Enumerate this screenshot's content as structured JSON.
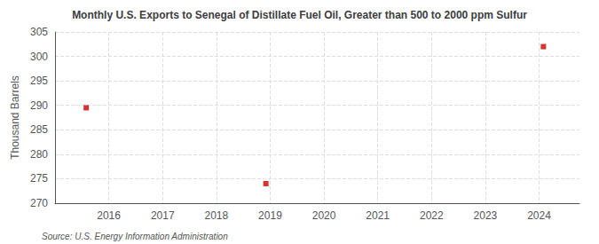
{
  "chart_data": {
    "type": "scatter",
    "title": "Monthly U.S. Exports to Senegal of Distillate Fuel Oil, Greater than 500 to 2000 ppm Sulfur",
    "ylabel": "Thousand Barrels",
    "source": "Source: U.S. Energy Information Administration",
    "x": [
      2015.58,
      2018.92,
      2024.08
    ],
    "values": [
      289.5,
      274.0,
      302.0
    ],
    "color": "#cc0000",
    "marker": "square",
    "xlim": [
      2015.0,
      2024.75
    ],
    "xticks": [
      2016,
      2017,
      2018,
      2019,
      2020,
      2021,
      2022,
      2023,
      2024
    ],
    "ylim": [
      270,
      305
    ],
    "yticks": [
      270,
      275,
      280,
      285,
      290,
      295,
      300,
      305
    ],
    "grid": true
  }
}
